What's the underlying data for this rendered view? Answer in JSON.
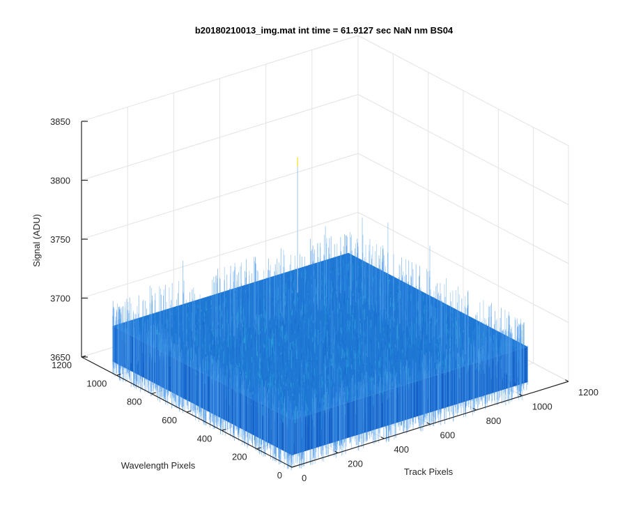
{
  "chart_data": {
    "type": "surface",
    "title": "b20180210013_img.mat int time = 61.9127 sec  NaN nm BS04",
    "xlabel": "Track Pixels",
    "ylabel": "Wavelength Pixels",
    "zlabel": "Signal (ADU)",
    "xlim": [
      0,
      1200
    ],
    "ylim": [
      0,
      1200
    ],
    "zlim": [
      3650,
      3850
    ],
    "x_ticks": [
      "0",
      "200",
      "400",
      "600",
      "800",
      "1000",
      "1200"
    ],
    "y_ticks": [
      "0",
      "200",
      "400",
      "600",
      "800",
      "1000",
      "1200"
    ],
    "z_ticks": [
      "3650",
      "3700",
      "3750",
      "3800",
      "3850"
    ],
    "surface": {
      "x_range": [
        1,
        1024
      ],
      "y_range": [
        1,
        1024
      ],
      "mean_signal": 3675,
      "noise_range": [
        3660,
        3690
      ],
      "max_spike": 3800
    },
    "grid": true,
    "colors": {
      "surface_base": "#1f78d4",
      "surface_highlight": "#22b4d8",
      "surface_dark": "#1460c6",
      "spike": "#f0e020",
      "grid": "#e3e3e3",
      "axis": "#262626"
    }
  }
}
